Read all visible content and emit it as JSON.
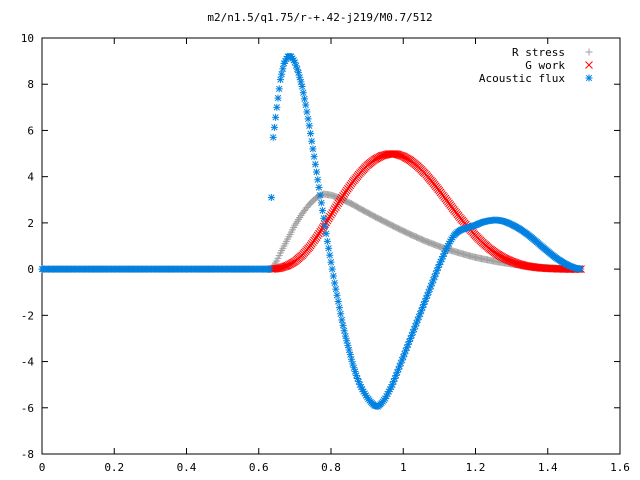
{
  "chart_data": {
    "type": "scatter",
    "title": "m2/n1.5/q1.75/r-+.42-j219/M0.7/512",
    "xlabel": "",
    "ylabel": "",
    "xlim": [
      0,
      1.6
    ],
    "ylim": [
      -8,
      10
    ],
    "xticks": [
      "0",
      "0.2",
      "0.4",
      "0.6",
      "0.8",
      "1",
      "1.2",
      "1.4",
      "1.6"
    ],
    "yticks": [
      "-8",
      "-6",
      "-4",
      "-2",
      "0",
      "2",
      "4",
      "6",
      "8",
      "10"
    ],
    "xtick_values": [
      0,
      0.2,
      0.4,
      0.6,
      0.8,
      1.0,
      1.2,
      1.4,
      1.6
    ],
    "ytick_values": [
      -8,
      -6,
      -4,
      -2,
      0,
      2,
      4,
      6,
      8,
      10
    ],
    "grid": false,
    "legend_position": "top-right",
    "series": [
      {
        "name": "R stress",
        "marker": "plus",
        "color": "#a0a0a0",
        "points": [
          [
            0.0,
            0
          ],
          [
            0.1,
            0
          ],
          [
            0.2,
            0
          ],
          [
            0.3,
            0
          ],
          [
            0.4,
            0
          ],
          [
            0.5,
            0
          ],
          [
            0.6,
            0
          ],
          [
            0.636,
            0
          ],
          [
            0.65,
            0.35
          ],
          [
            0.66,
            0.7
          ],
          [
            0.68,
            1.3
          ],
          [
            0.7,
            1.9
          ],
          [
            0.72,
            2.4
          ],
          [
            0.74,
            2.8
          ],
          [
            0.76,
            3.1
          ],
          [
            0.78,
            3.25
          ],
          [
            0.8,
            3.2
          ],
          [
            0.82,
            3.1
          ],
          [
            0.84,
            2.95
          ],
          [
            0.86,
            2.8
          ],
          [
            0.88,
            2.62
          ],
          [
            0.9,
            2.45
          ],
          [
            0.92,
            2.28
          ],
          [
            0.94,
            2.12
          ],
          [
            0.96,
            1.96
          ],
          [
            0.98,
            1.8
          ],
          [
            1.0,
            1.65
          ],
          [
            1.02,
            1.5
          ],
          [
            1.04,
            1.36
          ],
          [
            1.06,
            1.22
          ],
          [
            1.08,
            1.1
          ],
          [
            1.1,
            0.98
          ],
          [
            1.12,
            0.87
          ],
          [
            1.14,
            0.77
          ],
          [
            1.16,
            0.68
          ],
          [
            1.18,
            0.59
          ],
          [
            1.2,
            0.51
          ],
          [
            1.22,
            0.44
          ],
          [
            1.24,
            0.38
          ],
          [
            1.26,
            0.32
          ],
          [
            1.28,
            0.27
          ],
          [
            1.3,
            0.22
          ],
          [
            1.32,
            0.18
          ],
          [
            1.34,
            0.14
          ],
          [
            1.36,
            0.11
          ],
          [
            1.38,
            0.08
          ],
          [
            1.4,
            0.06
          ],
          [
            1.42,
            0.04
          ],
          [
            1.44,
            0.02
          ],
          [
            1.46,
            0.01
          ],
          [
            1.48,
            0.005
          ],
          [
            1.492,
            0
          ]
        ]
      },
      {
        "name": "G work",
        "marker": "cross",
        "color": "#ff0000",
        "points": [
          [
            0.636,
            0
          ],
          [
            0.65,
            0.02
          ],
          [
            0.66,
            0.05
          ],
          [
            0.68,
            0.15
          ],
          [
            0.7,
            0.33
          ],
          [
            0.72,
            0.6
          ],
          [
            0.74,
            0.95
          ],
          [
            0.76,
            1.38
          ],
          [
            0.78,
            1.85
          ],
          [
            0.8,
            2.35
          ],
          [
            0.82,
            2.85
          ],
          [
            0.84,
            3.33
          ],
          [
            0.86,
            3.77
          ],
          [
            0.88,
            4.15
          ],
          [
            0.9,
            4.48
          ],
          [
            0.92,
            4.73
          ],
          [
            0.94,
            4.9
          ],
          [
            0.96,
            4.98
          ],
          [
            0.98,
            4.98
          ],
          [
            1.0,
            4.88
          ],
          [
            1.02,
            4.7
          ],
          [
            1.04,
            4.45
          ],
          [
            1.06,
            4.14
          ],
          [
            1.08,
            3.78
          ],
          [
            1.1,
            3.39
          ],
          [
            1.12,
            2.98
          ],
          [
            1.14,
            2.57
          ],
          [
            1.16,
            2.17
          ],
          [
            1.18,
            1.8
          ],
          [
            1.2,
            1.45
          ],
          [
            1.22,
            1.14
          ],
          [
            1.24,
            0.87
          ],
          [
            1.26,
            0.65
          ],
          [
            1.28,
            0.47
          ],
          [
            1.3,
            0.33
          ],
          [
            1.32,
            0.22
          ],
          [
            1.34,
            0.14
          ],
          [
            1.36,
            0.09
          ],
          [
            1.38,
            0.05
          ],
          [
            1.4,
            0.03
          ],
          [
            1.42,
            0.015
          ],
          [
            1.44,
            0.005
          ],
          [
            1.46,
            0
          ],
          [
            1.48,
            0
          ],
          [
            1.492,
            0
          ]
        ]
      },
      {
        "name": "Acoustic flux",
        "marker": "star",
        "color": "#0080e0",
        "points": [
          [
            0.0,
            0
          ],
          [
            0.05,
            0
          ],
          [
            0.1,
            0
          ],
          [
            0.15,
            0
          ],
          [
            0.2,
            0
          ],
          [
            0.25,
            0
          ],
          [
            0.3,
            0
          ],
          [
            0.35,
            0
          ],
          [
            0.4,
            0
          ],
          [
            0.45,
            0
          ],
          [
            0.5,
            0
          ],
          [
            0.55,
            0
          ],
          [
            0.6,
            0
          ],
          [
            0.63,
            0
          ],
          [
            0.635,
            3.1
          ],
          [
            0.64,
            5.7
          ],
          [
            0.65,
            7.0
          ],
          [
            0.66,
            8.2
          ],
          [
            0.67,
            8.9
          ],
          [
            0.68,
            9.2
          ],
          [
            0.69,
            9.2
          ],
          [
            0.7,
            8.95
          ],
          [
            0.71,
            8.5
          ],
          [
            0.72,
            7.9
          ],
          [
            0.73,
            7.1
          ],
          [
            0.74,
            6.2
          ],
          [
            0.75,
            5.2
          ],
          [
            0.76,
            4.2
          ],
          [
            0.77,
            3.2
          ],
          [
            0.78,
            2.2
          ],
          [
            0.79,
            1.2
          ],
          [
            0.8,
            0.3
          ],
          [
            0.81,
            -0.6
          ],
          [
            0.82,
            -1.4
          ],
          [
            0.83,
            -2.2
          ],
          [
            0.84,
            -2.9
          ],
          [
            0.85,
            -3.5
          ],
          [
            0.86,
            -4.1
          ],
          [
            0.87,
            -4.6
          ],
          [
            0.88,
            -5.0
          ],
          [
            0.89,
            -5.3
          ],
          [
            0.9,
            -5.55
          ],
          [
            0.91,
            -5.75
          ],
          [
            0.92,
            -5.9
          ],
          [
            0.93,
            -5.95
          ],
          [
            0.94,
            -5.8
          ],
          [
            0.95,
            -5.6
          ],
          [
            0.96,
            -5.3
          ],
          [
            0.97,
            -5.0
          ],
          [
            0.98,
            -4.6
          ],
          [
            0.99,
            -4.2
          ],
          [
            1.0,
            -3.8
          ],
          [
            1.01,
            -3.4
          ],
          [
            1.02,
            -3.0
          ],
          [
            1.03,
            -2.6
          ],
          [
            1.04,
            -2.2
          ],
          [
            1.05,
            -1.8
          ],
          [
            1.06,
            -1.4
          ],
          [
            1.07,
            -1.0
          ],
          [
            1.08,
            -0.6
          ],
          [
            1.09,
            -0.2
          ],
          [
            1.1,
            0.2
          ],
          [
            1.11,
            0.55
          ],
          [
            1.12,
            0.9
          ],
          [
            1.13,
            1.2
          ],
          [
            1.14,
            1.45
          ],
          [
            1.15,
            1.6
          ],
          [
            1.16,
            1.7
          ],
          [
            1.17,
            1.75
          ],
          [
            1.18,
            1.8
          ],
          [
            1.19,
            1.85
          ],
          [
            1.2,
            1.9
          ],
          [
            1.21,
            1.97
          ],
          [
            1.22,
            2.03
          ],
          [
            1.23,
            2.07
          ],
          [
            1.24,
            2.1
          ],
          [
            1.25,
            2.12
          ],
          [
            1.26,
            2.12
          ],
          [
            1.27,
            2.1
          ],
          [
            1.28,
            2.06
          ],
          [
            1.29,
            2.0
          ],
          [
            1.3,
            1.93
          ],
          [
            1.31,
            1.85
          ],
          [
            1.32,
            1.76
          ],
          [
            1.33,
            1.66
          ],
          [
            1.34,
            1.55
          ],
          [
            1.35,
            1.43
          ],
          [
            1.36,
            1.3
          ],
          [
            1.37,
            1.17
          ],
          [
            1.38,
            1.03
          ],
          [
            1.39,
            0.9
          ],
          [
            1.4,
            0.77
          ],
          [
            1.41,
            0.64
          ],
          [
            1.42,
            0.52
          ],
          [
            1.43,
            0.41
          ],
          [
            1.44,
            0.31
          ],
          [
            1.45,
            0.22
          ],
          [
            1.46,
            0.14
          ],
          [
            1.47,
            0.08
          ],
          [
            1.48,
            0.03
          ],
          [
            1.49,
            0.01
          ]
        ]
      }
    ]
  }
}
